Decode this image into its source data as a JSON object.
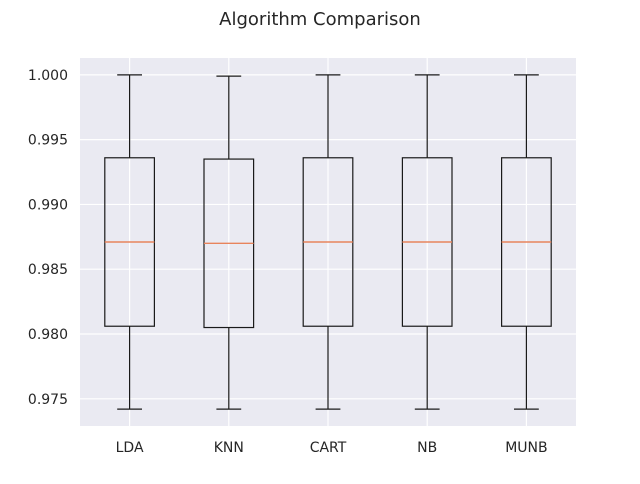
{
  "chart_data": {
    "type": "box",
    "title": "Algorithm Comparison",
    "xlabel": "",
    "ylabel": "",
    "ylim": [
      0.9729,
      1.0013
    ],
    "yticks": [
      0.975,
      0.98,
      0.985,
      0.99,
      0.995,
      1.0
    ],
    "ytick_labels": [
      "0.975",
      "0.980",
      "0.985",
      "0.990",
      "0.995",
      "1.000"
    ],
    "grid": true,
    "legend": "none",
    "categories": [
      "LDA",
      "KNN",
      "CART",
      "NB",
      "MUNB"
    ],
    "boxes": [
      {
        "whisker_low": 0.9742,
        "q1": 0.9806,
        "median": 0.9871,
        "q3": 0.9936,
        "whisker_high": 1.0
      },
      {
        "whisker_low": 0.9742,
        "q1": 0.9805,
        "median": 0.987,
        "q3": 0.9935,
        "whisker_high": 0.9999
      },
      {
        "whisker_low": 0.9742,
        "q1": 0.9806,
        "median": 0.9871,
        "q3": 0.9936,
        "whisker_high": 1.0
      },
      {
        "whisker_low": 0.9742,
        "q1": 0.9806,
        "median": 0.9871,
        "q3": 0.9936,
        "whisker_high": 1.0
      },
      {
        "whisker_low": 0.9742,
        "q1": 0.9806,
        "median": 0.9871,
        "q3": 0.9936,
        "whisker_high": 1.0
      }
    ],
    "colors": {
      "plot_background": "#eaeaf2",
      "grid": "#ffffff",
      "box_edge": "#1a1a1a",
      "median": "#e8845c",
      "text": "#262626"
    }
  }
}
